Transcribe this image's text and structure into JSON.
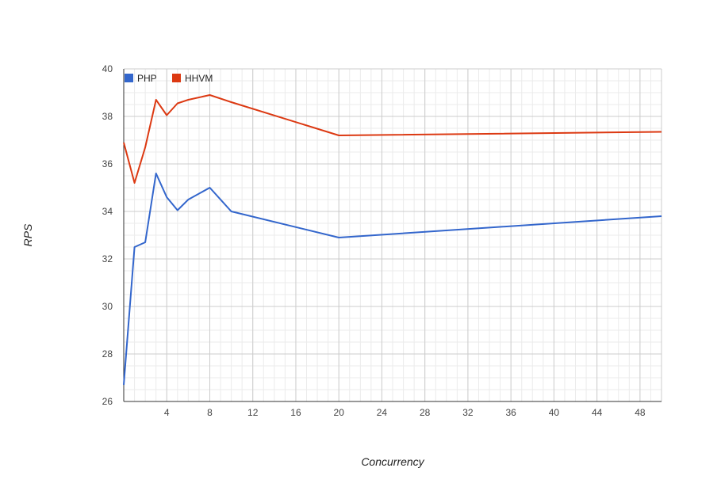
{
  "chart_data": {
    "type": "line",
    "xlabel": "Concurrency",
    "ylabel": "RPS",
    "xlim": [
      0,
      50
    ],
    "ylim": [
      26,
      40
    ],
    "x_ticks": [
      4,
      8,
      12,
      16,
      20,
      24,
      28,
      32,
      36,
      40,
      44,
      48
    ],
    "y_ticks": [
      26,
      28,
      30,
      32,
      34,
      36,
      38,
      40
    ],
    "grid": true,
    "legend_position": "top-left",
    "series": [
      {
        "name": "PHP",
        "color": "#3366cc",
        "x": [
          0,
          1,
          2,
          3,
          4,
          5,
          6,
          8,
          10,
          20,
          50
        ],
        "y": [
          26.7,
          32.5,
          32.7,
          35.6,
          34.6,
          34.05,
          34.5,
          35.0,
          34.0,
          32.9,
          33.8
        ]
      },
      {
        "name": "HHVM",
        "color": "#dc3912",
        "x": [
          0,
          1,
          2,
          3,
          4,
          5,
          6,
          8,
          10,
          20,
          50
        ],
        "y": [
          36.9,
          35.2,
          36.7,
          38.7,
          38.05,
          38.55,
          38.7,
          38.9,
          38.6,
          37.2,
          37.35
        ]
      }
    ]
  }
}
